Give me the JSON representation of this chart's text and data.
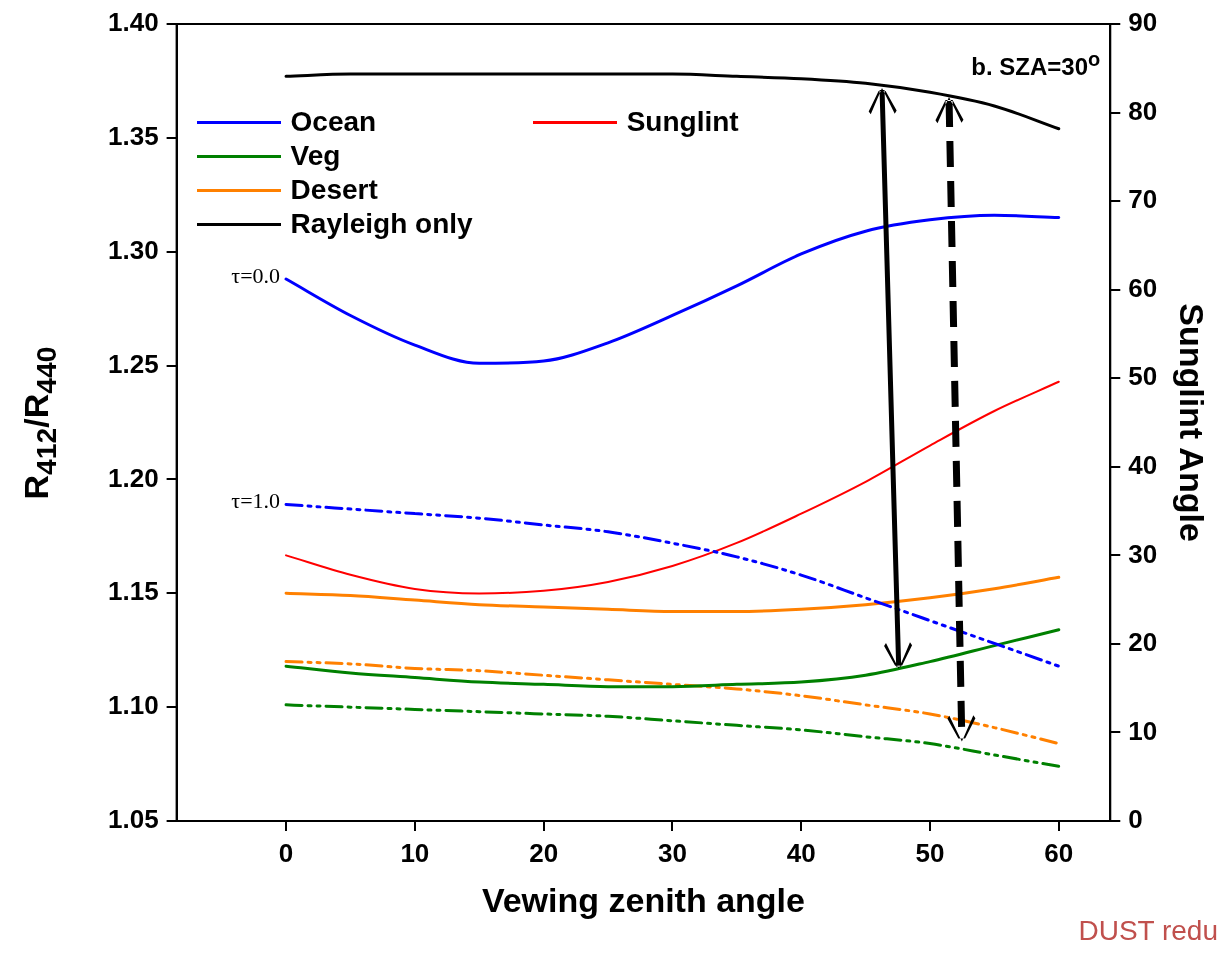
{
  "chart_data": {
    "type": "line",
    "xlabel": "Vewing zenith angle",
    "ylabel": "R$_{412}$/R$_{440}$",
    "y2label": "Sunglint Angle",
    "x": [
      0,
      5,
      10,
      15,
      20,
      25,
      30,
      35,
      40,
      45,
      50,
      55,
      60
    ],
    "xlim": [
      -8.5,
      64
    ],
    "xticks": [
      0,
      10,
      20,
      30,
      40,
      50,
      60
    ],
    "ylim": [
      1.05,
      1.4
    ],
    "yticks": [
      1.05,
      {
        "value": 1.1,
        "label": "1.10"
      },
      1.15,
      {
        "value": 1.2,
        "label": "1.20"
      },
      1.25,
      {
        "value": 1.3,
        "label": "1.30"
      },
      1.35,
      {
        "value": 1.4,
        "label": "1.40"
      }
    ],
    "y2lim": [
      0,
      90
    ],
    "y2ticks": [
      0,
      10,
      20,
      30,
      40,
      50,
      60,
      70,
      80,
      90
    ],
    "series": [
      {
        "name": "Ocean",
        "color": "#0000ff",
        "line_style": "solid",
        "values": [
          1.288,
          1.272,
          1.259,
          1.251,
          1.252,
          1.26,
          1.272,
          1.285,
          1.299,
          1.309,
          1.314,
          1.316,
          1.315
        ]
      },
      {
        "color": "#0000ff",
        "line_style": "dashed",
        "values": [
          1.189,
          1.187,
          1.185,
          1.183,
          1.18,
          1.177,
          1.172,
          1.166,
          1.158,
          1.148,
          1.138,
          1.128,
          1.118
        ]
      },
      {
        "name": "Veg",
        "color": "#008000",
        "line_style": "solid",
        "values": [
          1.118,
          1.115,
          1.113,
          1.111,
          1.11,
          1.109,
          1.109,
          1.11,
          1.111,
          1.114,
          1.12,
          1.127,
          1.134
        ]
      },
      {
        "color": "#008000",
        "line_style": "dashed",
        "values": [
          1.101,
          1.1,
          1.099,
          1.098,
          1.097,
          1.096,
          1.094,
          1.092,
          1.09,
          1.087,
          1.084,
          1.079,
          1.074
        ]
      },
      {
        "name": "Desert",
        "color": "#ff8000",
        "line_style": "solid",
        "values": [
          1.15,
          1.149,
          1.147,
          1.145,
          1.144,
          1.143,
          1.142,
          1.142,
          1.143,
          1.145,
          1.148,
          1.152,
          1.157
        ]
      },
      {
        "color": "#ff8000",
        "line_style": "dashed",
        "values": [
          1.12,
          1.119,
          1.117,
          1.116,
          1.114,
          1.112,
          1.11,
          1.108,
          1.105,
          1.101,
          1.097,
          1.091,
          1.084
        ]
      },
      {
        "name": "Rayleigh only",
        "color": "#000000",
        "line_style": "solid",
        "values": [
          1.377,
          1.378,
          1.378,
          1.378,
          1.378,
          1.378,
          1.378,
          1.377,
          1.376,
          1.374,
          1.37,
          1.364,
          1.354
        ]
      },
      {
        "name": "Sunglint",
        "color": "#ff0000",
        "line_style": "solid",
        "axis": "y2",
        "values": [
          30,
          27.8,
          26.2,
          25.7,
          26,
          27,
          28.8,
          31.4,
          34.7,
          38.3,
          42.4,
          46.3,
          49.6
        ]
      }
    ],
    "annotations": [
      {
        "text": "τ=0.0",
        "x": 0,
        "y": 1.288
      },
      {
        "text": "τ=1.0",
        "x": 0,
        "y": 1.189
      },
      "b. SZA=30$^{o}$",
      "DUST redu"
    ],
    "legend": "top left",
    "marker": "none",
    "grid": false
  }
}
